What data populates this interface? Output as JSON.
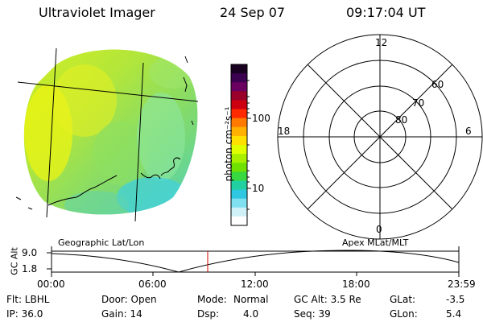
{
  "header": {
    "instrument": "Ultraviolet Imager",
    "date": "24 Sep 07",
    "time": "09:17:04 UT"
  },
  "colorbar": {
    "unit_label": "photon cm⁻²s⁻¹",
    "ticks": [
      "100",
      "10"
    ],
    "colors_top_to_bottom": [
      "#1a0020",
      "#3c0050",
      "#6a0060",
      "#99002a",
      "#cc0010",
      "#ff2a00",
      "#ff7a00",
      "#ffb000",
      "#ffe000",
      "#e0ff00",
      "#a8f000",
      "#70e000",
      "#38d840",
      "#20d0a0",
      "#30c8e0",
      "#80e0f0",
      "#d0f0f8",
      "#ffffff"
    ]
  },
  "polar": {
    "clock_labels": {
      "top": "12",
      "left": "18",
      "right": "6",
      "bottom": "0"
    },
    "lat_labels": [
      "60",
      "70",
      "80"
    ]
  },
  "timeline": {
    "left_title": "Geographic Lat/Lon",
    "right_title": "Apex MLat/MLT",
    "ylabel": "GC Alt",
    "yticks": [
      "9.0",
      "1.8"
    ],
    "xticks": [
      "00:00",
      "06:00",
      "12:00",
      "18:00",
      "23:59"
    ],
    "marker_color": "#d00000"
  },
  "status": {
    "filter": "Flt: LBHL",
    "door": "Door: Open",
    "mode_label": "Mode:",
    "mode_value": "Normal",
    "gc_alt": "GC Alt: 3.5 Re",
    "glat_label": "GLat:",
    "glat_value": "-3.5",
    "ip": "IP: 36.0",
    "gain": "Gain: 14",
    "dsp_label": "Dsp:",
    "dsp_value": "4.0",
    "seq": "Seq: 39",
    "glon_label": "GLon:",
    "glon_value": "5.4"
  }
}
